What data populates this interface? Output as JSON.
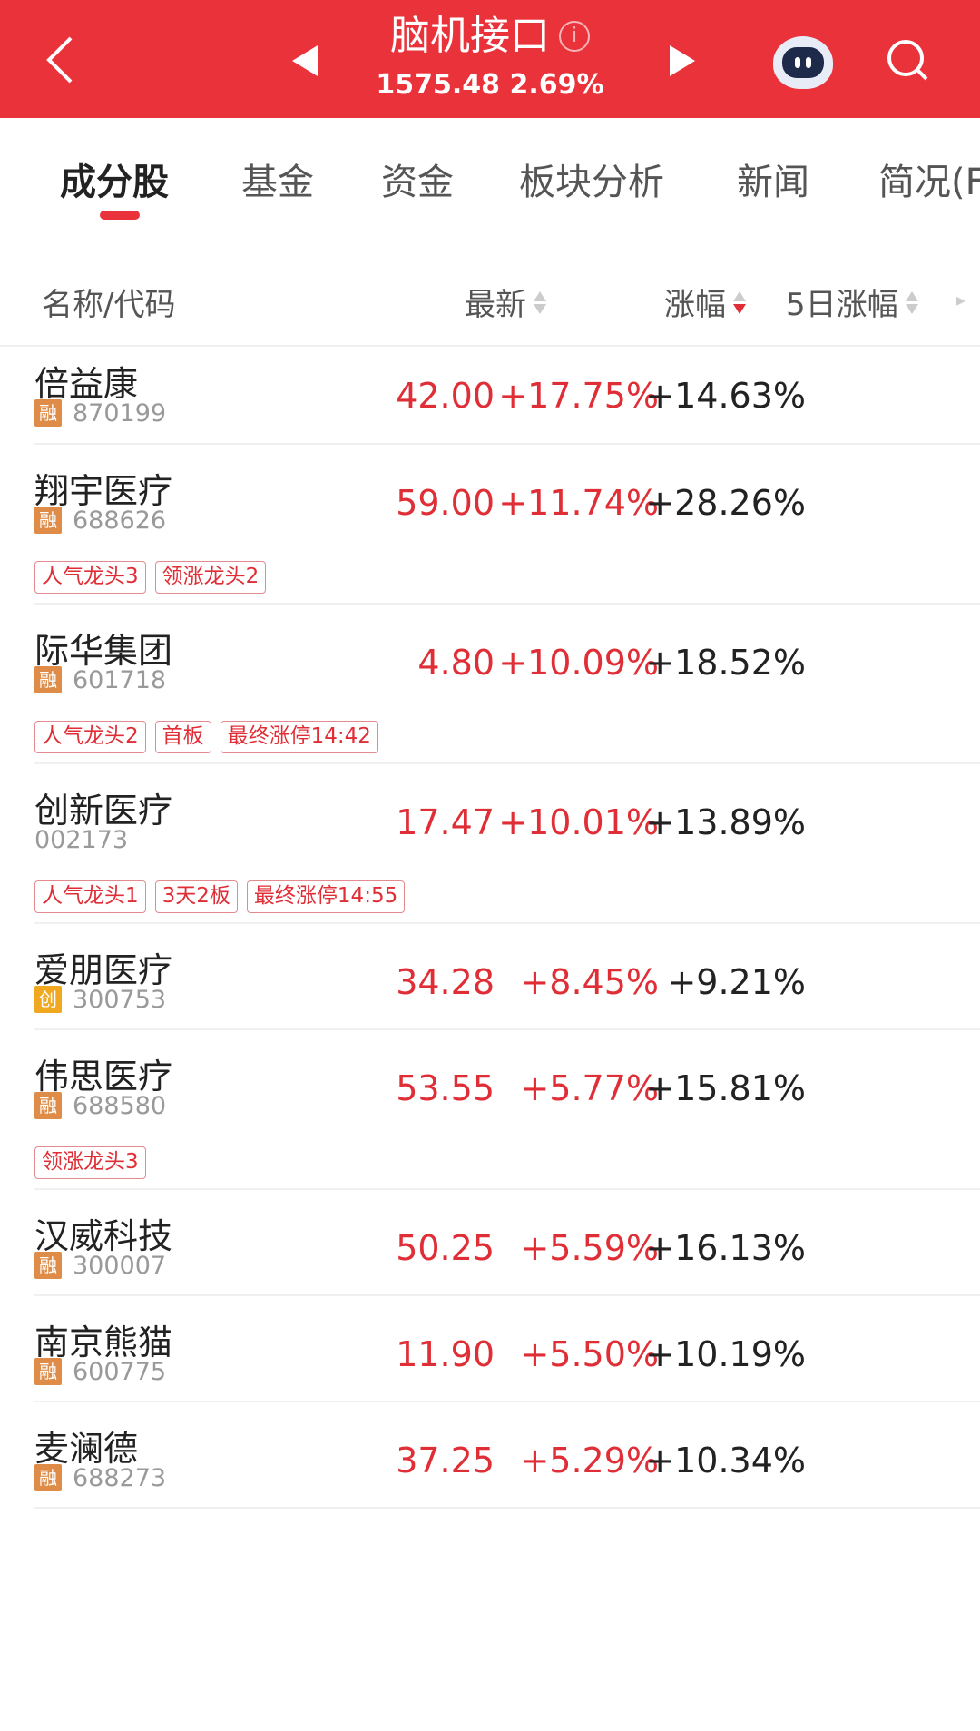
{
  "header": {
    "title": "脑机接口",
    "info_icon": "i",
    "index_value": "1575.48",
    "index_change": "2.69%",
    "bg_color": "#ea323a"
  },
  "tabs": [
    {
      "label": "成分股",
      "active": true
    },
    {
      "label": "基金"
    },
    {
      "label": "资金"
    },
    {
      "label": "板块分析"
    },
    {
      "label": "新闻"
    },
    {
      "label": "简况(F"
    }
  ],
  "columns": {
    "name": "名称/代码",
    "price": "最新",
    "change": "涨幅",
    "change5d": "5日涨幅"
  },
  "rows": [
    {
      "name": "倍益康",
      "badge": "融",
      "code": "870199",
      "price": "42.00",
      "change": "+17.75%",
      "change5d": "+14.63%",
      "tags": []
    },
    {
      "name": "翔宇医疗",
      "badge": "融",
      "code": "688626",
      "price": "59.00",
      "change": "+11.74%",
      "change5d": "+28.26%",
      "tags": [
        "人气龙头3",
        "领涨龙头2"
      ]
    },
    {
      "name": "际华集团",
      "badge": "融",
      "code": "601718",
      "price": "4.80",
      "change": "+10.09%",
      "change5d": "+18.52%",
      "tags": [
        "人气龙头2",
        "首板",
        "最终涨停14:42"
      ]
    },
    {
      "name": "创新医疗",
      "badge": "",
      "code": "002173",
      "price": "17.47",
      "change": "+10.01%",
      "change5d": "+13.89%",
      "tags": [
        "人气龙头1",
        "3天2板",
        "最终涨停14:55"
      ]
    },
    {
      "name": "爱朋医疗",
      "badge": "创",
      "code": "300753",
      "price": "34.28",
      "change": "+8.45%",
      "change5d": "+9.21%",
      "tags": []
    },
    {
      "name": "伟思医疗",
      "badge": "融",
      "code": "688580",
      "price": "53.55",
      "change": "+5.77%",
      "change5d": "+15.81%",
      "tags": [
        "领涨龙头3"
      ]
    },
    {
      "name": "汉威科技",
      "badge": "融",
      "code": "300007",
      "price": "50.25",
      "change": "+5.59%",
      "change5d": "+16.13%",
      "tags": []
    },
    {
      "name": "南京熊猫",
      "badge": "融",
      "code": "600775",
      "price": "11.90",
      "change": "+5.50%",
      "change5d": "+10.19%",
      "tags": []
    },
    {
      "name": "麦澜德",
      "badge": "融",
      "code": "688273",
      "price": "37.25",
      "change": "+5.29%",
      "change5d": "+10.34%",
      "tags": []
    }
  ]
}
